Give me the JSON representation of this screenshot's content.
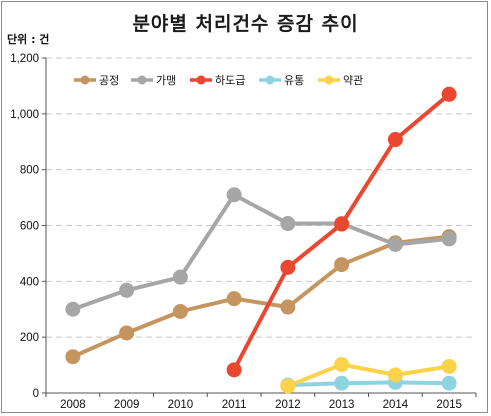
{
  "chart_data": {
    "type": "line",
    "title": "분야별 처리건수 증감 추이",
    "unit_label": "단위 : 건",
    "x": [
      "2008",
      "2009",
      "2010",
      "2011",
      "2012",
      "2013",
      "2014",
      "2015"
    ],
    "ylim": [
      0,
      1200
    ],
    "yticks": [
      0,
      200,
      400,
      600,
      800,
      1000,
      1200
    ],
    "ytick_labels": [
      "0",
      "200",
      "400",
      "600",
      "800",
      "1,000",
      "1,200"
    ],
    "grid": true,
    "legend_position": "top-left",
    "series": [
      {
        "name": "공정",
        "color": "#c4955f",
        "values": [
          130,
          215,
          292,
          338,
          308,
          460,
          538,
          560
        ]
      },
      {
        "name": "가맹",
        "color": "#a6a6a6",
        "values": [
          300,
          368,
          415,
          710,
          607,
          607,
          532,
          552
        ]
      },
      {
        "name": "하도급",
        "color": "#ea4630",
        "values": [
          null,
          null,
          null,
          83,
          450,
          605,
          908,
          1070
        ]
      },
      {
        "name": "유통",
        "color": "#8fd3e2",
        "values": [
          null,
          null,
          null,
          null,
          28,
          35,
          38,
          35
        ]
      },
      {
        "name": "약관",
        "color": "#fdd24b",
        "values": [
          null,
          null,
          null,
          null,
          25,
          102,
          65,
          95
        ]
      }
    ]
  }
}
